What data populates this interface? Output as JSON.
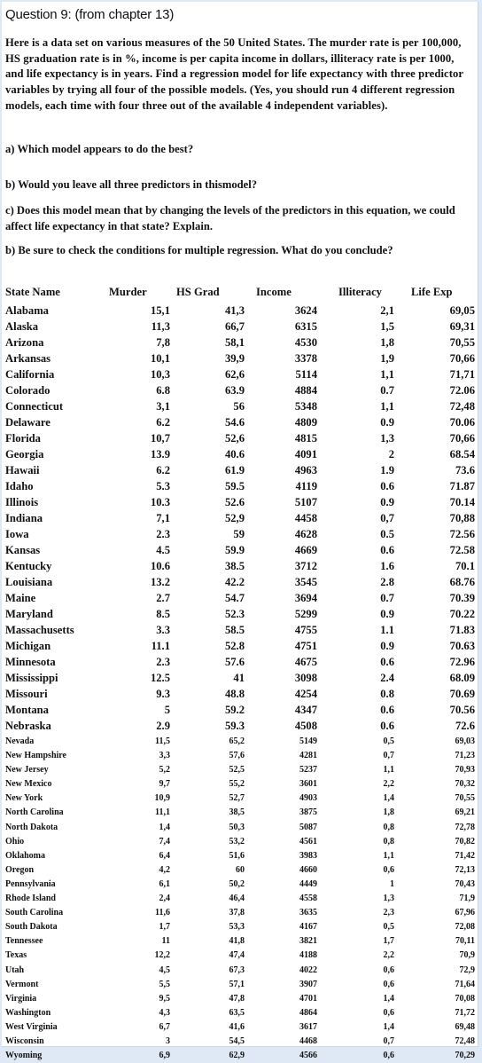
{
  "question": {
    "title": "Question 9: (from chapter 13)",
    "intro": "Here is a data set on various measures of the 50 United States. The murder rate is per 100,000, HS graduation rate is in %, income is per capita income in dollars, illiteracy rate is per 1000, and life expectancy is in years. Find a regression model for life expectancy with three predictor variables by trying all four of the possible models. (Yes, you should run 4 different regression models, each time with four three out of the available 4 independent variables).",
    "part_a": "a) Which model appears to do the best?",
    "part_b": "b) Would you leave all three predictors in thismodel?",
    "part_c": "c) Does this model mean that by changing the levels of the predictors in this equation, we could affect life expectancy in that state? Explain.",
    "part_d": "b) Be sure to check the conditions for multiple regression. What do you conclude?"
  },
  "table": {
    "headers": [
      "State Name",
      "Murder",
      "HS Grad",
      "Income",
      "Illiteracy",
      "Life Exp"
    ],
    "rows": [
      [
        "Alabama",
        "15,1",
        "41,3",
        "3624",
        "2,1",
        "69,05"
      ],
      [
        "Alaska",
        "11,3",
        "66,7",
        "6315",
        "1,5",
        "69,31"
      ],
      [
        "Arizona",
        "7,8",
        "58,1",
        "4530",
        "1,8",
        "70,55"
      ],
      [
        "Arkansas",
        "10,1",
        "39,9",
        "3378",
        "1,9",
        "70,66"
      ],
      [
        "California",
        "10,3",
        "62,6",
        "5114",
        "1,1",
        "71,71"
      ],
      [
        "Colorado",
        "6.8",
        "63.9",
        "4884",
        "0.7",
        "72.06"
      ],
      [
        "Connecticut",
        "3,1",
        "56",
        "5348",
        "1,1",
        "72,48"
      ],
      [
        "Delaware",
        "6.2",
        "54.6",
        "4809",
        "0.9",
        "70.06"
      ],
      [
        "Florida",
        "10,7",
        "52,6",
        "4815",
        "1,3",
        "70,66"
      ],
      [
        "Georgia",
        "13.9",
        "40.6",
        "4091",
        "2",
        "68.54"
      ],
      [
        "Hawaii",
        "6.2",
        "61.9",
        "4963",
        "1.9",
        "73.6"
      ],
      [
        "Idaho",
        "5.3",
        "59.5",
        "4119",
        "0.6",
        "71.87"
      ],
      [
        "Illinois",
        "10.3",
        "52.6",
        "5107",
        "0.9",
        "70.14"
      ],
      [
        "Indiana",
        "7,1",
        "52,9",
        "4458",
        "0,7",
        "70,88"
      ],
      [
        "Iowa",
        "2.3",
        "59",
        "4628",
        "0.5",
        "72.56"
      ],
      [
        "Kansas",
        "4.5",
        "59.9",
        "4669",
        "0.6",
        "72.58"
      ],
      [
        "Kentucky",
        "10.6",
        "38.5",
        "3712",
        "1.6",
        "70.1"
      ],
      [
        "Louisiana",
        "13.2",
        "42.2",
        "3545",
        "2.8",
        "68.76"
      ],
      [
        "Maine",
        "2.7",
        "54.7",
        "3694",
        "0.7",
        "70.39"
      ],
      [
        "Maryland",
        "8.5",
        "52.3",
        "5299",
        "0.9",
        "70.22"
      ],
      [
        "Massachusetts",
        "3.3",
        "58.5",
        "4755",
        "1.1",
        "71.83"
      ],
      [
        "Michigan",
        "11.1",
        "52.8",
        "4751",
        "0.9",
        "70.63"
      ],
      [
        "Minnesota",
        "2.3",
        "57.6",
        "4675",
        "0.6",
        "72.96"
      ],
      [
        "Mississippi",
        "12.5",
        "41",
        "3098",
        "2.4",
        "68.09"
      ],
      [
        "Missouri",
        "9.3",
        "48.8",
        "4254",
        "0.8",
        "70.69"
      ],
      [
        "Montana",
        "5",
        "59.2",
        "4347",
        "0.6",
        "70.56"
      ],
      [
        "Nebraska",
        "2.9",
        "59.3",
        "4508",
        "0.6",
        "72.6"
      ]
    ],
    "rows_small": [
      [
        "Nevada",
        "11,5",
        "65,2",
        "5149",
        "0,5",
        "69,03"
      ],
      [
        "New Hampshire",
        "3,3",
        "57,6",
        "4281",
        "0,7",
        "71,23"
      ],
      [
        "New Jersey",
        "5,2",
        "52,5",
        "5237",
        "1,1",
        "70,93"
      ],
      [
        "New Mexico",
        "9,7",
        "55,2",
        "3601",
        "2,2",
        "70,32"
      ],
      [
        "New York",
        "10,9",
        "52,7",
        "4903",
        "1,4",
        "70,55"
      ],
      [
        "North Carolina",
        "11,1",
        "38,5",
        "3875",
        "1,8",
        "69,21"
      ],
      [
        "North Dakota",
        "1,4",
        "50,3",
        "5087",
        "0,8",
        "72,78"
      ],
      [
        "Ohio",
        "7,4",
        "53,2",
        "4561",
        "0,8",
        "70,82"
      ],
      [
        "Oklahoma",
        "6,4",
        "51,6",
        "3983",
        "1,1",
        "71,42"
      ],
      [
        "Oregon",
        "4,2",
        "60",
        "4660",
        "0,6",
        "72,13"
      ],
      [
        "Pennsylvania",
        "6,1",
        "50,2",
        "4449",
        "1",
        "70,43"
      ],
      [
        "Rhode Island",
        "2,4",
        "46,4",
        "4558",
        "1,3",
        "71,9"
      ],
      [
        "South Carolina",
        "11,6",
        "37,8",
        "3635",
        "2,3",
        "67,96"
      ],
      [
        "South Dakota",
        "1,7",
        "53,3",
        "4167",
        "0,5",
        "72,08"
      ],
      [
        "Tennessee",
        "11",
        "41,8",
        "3821",
        "1,7",
        "70,11"
      ],
      [
        "Texas",
        "12,2",
        "47,4",
        "4188",
        "2,2",
        "70,9"
      ],
      [
        "Utah",
        "4,5",
        "67,3",
        "4022",
        "0,6",
        "72,9"
      ],
      [
        "Vermont",
        "5,5",
        "57,1",
        "3907",
        "0,6",
        "71,64"
      ],
      [
        "Virginia",
        "9,5",
        "47,8",
        "4701",
        "1,4",
        "70,08"
      ],
      [
        "Washington",
        "4,3",
        "63,5",
        "4864",
        "0,6",
        "71,72"
      ],
      [
        "West Virginia",
        "6,7",
        "41,6",
        "3617",
        "1,4",
        "69,48"
      ],
      [
        "Wisconsin",
        "3",
        "54,5",
        "4468",
        "0,7",
        "72,48"
      ],
      [
        "Wyoming",
        "6,9",
        "62,9",
        "4566",
        "0,6",
        "70,29"
      ]
    ]
  }
}
